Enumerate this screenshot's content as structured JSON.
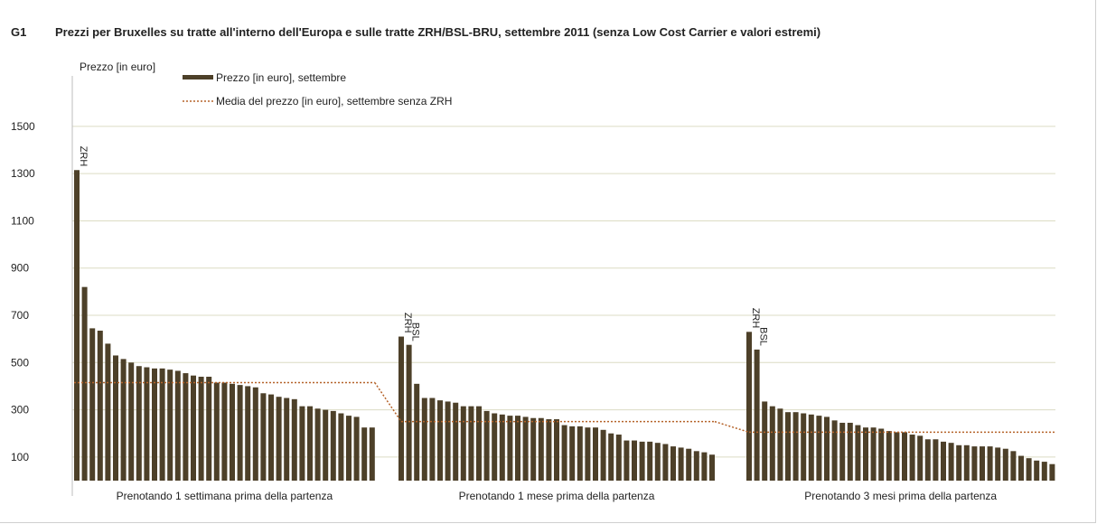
{
  "figure": {
    "number": "G1",
    "title": "Prezzi per Bruxelles su tratte all'interno dell'Europa e sulle tratte ZRH/BSL-BRU, settembre 2011 (senza Low Cost Carrier e valori estremi)"
  },
  "colors": {
    "bar": "#4d4029",
    "mean_line": "#b5632a",
    "grid": "#dcdcc4",
    "title_number": "#9c5a23"
  },
  "chart_data": {
    "type": "bar",
    "ylabel": "Prezzo [in euro]",
    "yticks": [
      100,
      300,
      500,
      700,
      900,
      1100,
      1300,
      1500
    ],
    "ylim": [
      0,
      1700
    ],
    "grid": true,
    "legend_position": "top-left",
    "legend": {
      "bar_label": "Prezzo [in euro], settembre",
      "line_label": "Media del prezzo [in euro], settembre senza ZRH"
    },
    "groups": [
      {
        "label": "Prenotando  1 settimana prima della partenza",
        "values": [
          1315,
          820,
          645,
          635,
          580,
          530,
          515,
          500,
          485,
          480,
          475,
          475,
          470,
          465,
          455,
          445,
          440,
          440,
          415,
          415,
          410,
          405,
          400,
          395,
          370,
          365,
          355,
          350,
          345,
          315,
          315,
          305,
          300,
          295,
          285,
          275,
          270,
          225,
          225
        ],
        "mean": 415,
        "annotations": [
          {
            "index": 0,
            "text": "ZRH"
          }
        ]
      },
      {
        "label": "Prenotando  1 mese prima della partenza",
        "values": [
          610,
          575,
          410,
          350,
          350,
          340,
          335,
          330,
          315,
          315,
          315,
          295,
          285,
          280,
          275,
          275,
          270,
          265,
          265,
          260,
          260,
          235,
          230,
          230,
          225,
          225,
          215,
          200,
          195,
          170,
          170,
          165,
          165,
          160,
          155,
          145,
          140,
          135,
          125,
          120,
          110
        ],
        "mean": 250,
        "annotations": [
          {
            "index": 0,
            "text": "ZRH"
          },
          {
            "index": 1,
            "text": "BSL"
          }
        ]
      },
      {
        "label": "Prenotando  3 mesi prima della partenza",
        "values": [
          630,
          555,
          335,
          315,
          305,
          290,
          290,
          285,
          280,
          275,
          270,
          255,
          245,
          245,
          235,
          225,
          225,
          220,
          210,
          205,
          205,
          195,
          190,
          175,
          175,
          165,
          160,
          150,
          150,
          145,
          145,
          145,
          140,
          135,
          125,
          105,
          95,
          85,
          80,
          70
        ],
        "mean": 205,
        "annotations": [
          {
            "index": 0,
            "text": "ZRH"
          },
          {
            "index": 1,
            "text": "BSL"
          }
        ]
      }
    ]
  }
}
